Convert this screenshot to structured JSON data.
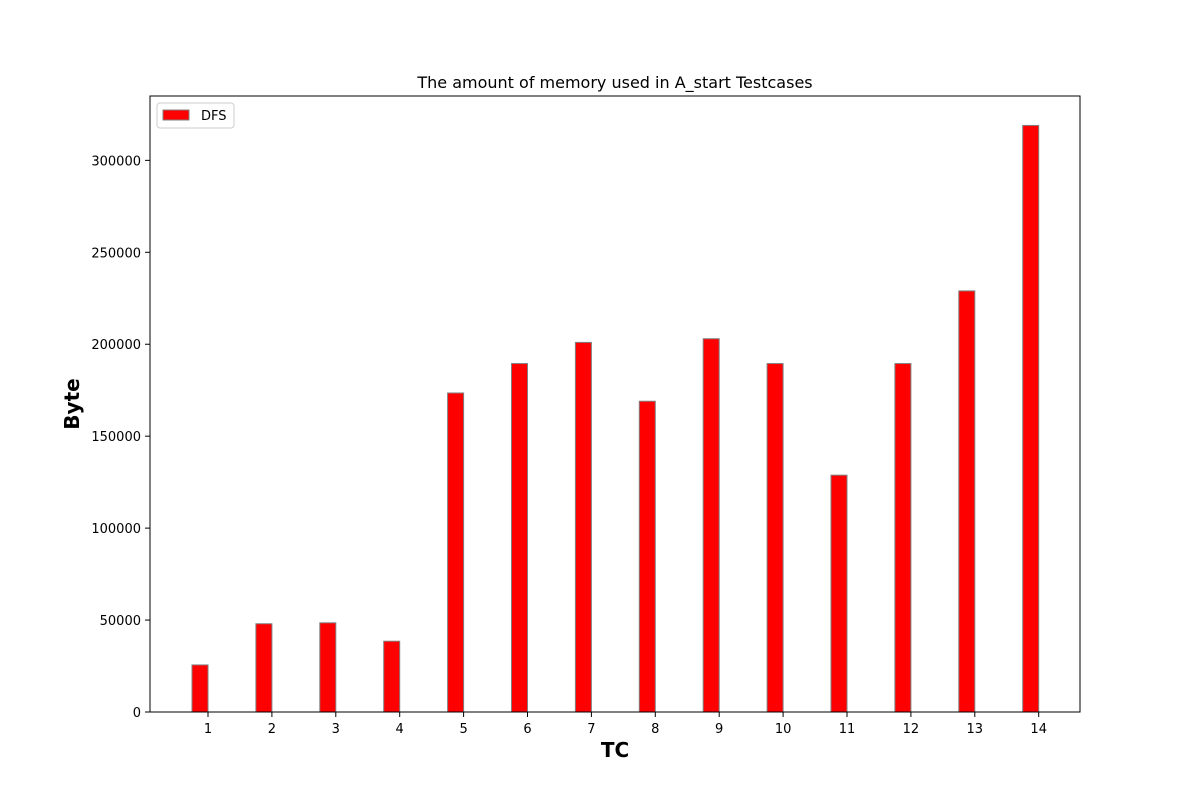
{
  "chart_data": {
    "type": "bar",
    "title": "The amount of memory used in A_start Testcases",
    "xlabel": "TC",
    "ylabel": "Byte",
    "categories": [
      "1",
      "2",
      "3",
      "4",
      "5",
      "6",
      "7",
      "8",
      "9",
      "10",
      "11",
      "12",
      "13",
      "14"
    ],
    "series": [
      {
        "name": "DFS",
        "color": "#ff0000",
        "edge_color": "#808080",
        "values": [
          25600,
          48000,
          48500,
          38500,
          173500,
          189500,
          201000,
          169000,
          203000,
          189500,
          128800,
          189500,
          229000,
          319000
        ]
      }
    ],
    "ylim": [
      0,
      335000
    ],
    "yticks": [
      0,
      50000,
      100000,
      150000,
      200000,
      250000,
      300000
    ],
    "grid": false,
    "legend_position": "top-left"
  }
}
